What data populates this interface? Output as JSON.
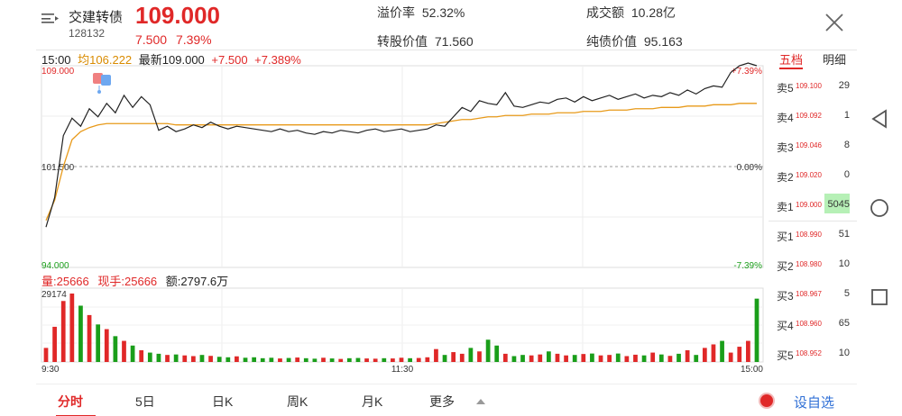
{
  "header": {
    "name": "交建转债",
    "code": "128132",
    "price": "109.000",
    "change_abs": "7.500",
    "change_pct": "7.39%",
    "premium_label": "溢价率",
    "premium_value": "52.32%",
    "turnover_label": "成交额",
    "turnover_value": "10.28亿",
    "conversion_label": "转股价值",
    "conversion_value": "71.560",
    "bond_label": "纯债价值",
    "bond_value": "95.163"
  },
  "info_row": {
    "time": "15:00",
    "avg_label": "均106.222",
    "latest_label": "最新109.000",
    "change_abs": "+7.500",
    "change_pct": "+7.389%"
  },
  "volume_row": {
    "volume": "量:25666",
    "current": "现手:25666",
    "amount": "额:2797.6万"
  },
  "chart_data": {
    "type": "line",
    "title": "",
    "ylim": [
      94.0,
      109.0
    ],
    "y_ticks": [
      "109.000",
      "101.500",
      "94.000"
    ],
    "pct_ticks": [
      "+7.39%",
      "0.00%",
      "-7.39%"
    ],
    "x_ticks": [
      "9:30",
      "11:30",
      "15:00"
    ],
    "prev_close": 101.5,
    "volume_max_label": "29174",
    "volume_max": 29174,
    "price": [
      97.0,
      99.2,
      103.8,
      105.1,
      104.5,
      105.8,
      105.2,
      106.2,
      105.5,
      106.8,
      105.9,
      106.7,
      106.1,
      104.2,
      104.5,
      104.1,
      104.3,
      104.6,
      104.4,
      104.8,
      104.5,
      104.3,
      104.5,
      104.4,
      104.3,
      104.2,
      104.1,
      104.3,
      104.1,
      104.2,
      104.0,
      103.9,
      104.1,
      104.0,
      104.2,
      104.1,
      104.0,
      104.2,
      104.3,
      104.1,
      104.2,
      104.3,
      104.1,
      104.2,
      104.3,
      104.6,
      104.5,
      105.2,
      105.9,
      105.6,
      106.4,
      106.2,
      106.1,
      107.0,
      106.0,
      105.9,
      106.1,
      106.3,
      106.2,
      106.5,
      106.6,
      106.3,
      106.7,
      106.4,
      106.6,
      106.8,
      106.5,
      106.7,
      106.9,
      106.6,
      106.8,
      106.7,
      107.0,
      106.8,
      107.2,
      106.9,
      107.3,
      107.5,
      107.4,
      108.5,
      109.0,
      109.2,
      109.0
    ],
    "average": [
      97.5,
      99.0,
      101.5,
      103.5,
      104.1,
      104.4,
      104.6,
      104.7,
      104.7,
      104.7,
      104.7,
      104.7,
      104.7,
      104.7,
      104.7,
      104.6,
      104.6,
      104.6,
      104.6,
      104.6,
      104.6,
      104.6,
      104.6,
      104.6,
      104.6,
      104.6,
      104.6,
      104.6,
      104.6,
      104.6,
      104.6,
      104.6,
      104.6,
      104.6,
      104.6,
      104.6,
      104.6,
      104.6,
      104.6,
      104.6,
      104.6,
      104.6,
      104.6,
      104.6,
      104.6,
      104.7,
      104.8,
      104.9,
      105.0,
      105.0,
      105.1,
      105.2,
      105.2,
      105.3,
      105.3,
      105.3,
      105.4,
      105.4,
      105.4,
      105.5,
      105.5,
      105.5,
      105.6,
      105.6,
      105.6,
      105.7,
      105.7,
      105.7,
      105.8,
      105.8,
      105.8,
      105.9,
      105.9,
      105.9,
      106.0,
      106.0,
      106.0,
      106.1,
      106.1,
      106.1,
      106.2,
      106.2,
      106.2
    ],
    "volume": [
      6000,
      15000,
      26000,
      29174,
      24000,
      20000,
      16000,
      14000,
      11000,
      9000,
      7000,
      5000,
      4000,
      3500,
      3000,
      3200,
      2800,
      2500,
      3000,
      2600,
      2200,
      2000,
      2400,
      1800,
      2000,
      1600,
      1800,
      1500,
      1700,
      1900,
      1600,
      1400,
      1800,
      1500,
      1300,
      1600,
      1700,
      1500,
      1400,
      1600,
      1500,
      1800,
      1600,
      1700,
      2000,
      5500,
      3000,
      4200,
      3500,
      6000,
      4500,
      9500,
      7000,
      3500,
      2500,
      3000,
      2800,
      3200,
      4500,
      3500,
      2800,
      3000,
      3400,
      3600,
      2800,
      3000,
      3600,
      2500,
      3100,
      2800,
      4000,
      3200,
      2600,
      3500,
      5000,
      3000,
      6000,
      7500,
      9000,
      4000,
      6500,
      9000,
      27000
    ]
  },
  "order_book": {
    "tab_active": "五档",
    "tab_other": "明细",
    "sell": [
      {
        "label": "卖5",
        "price": "109.100",
        "vol": "29"
      },
      {
        "label": "卖4",
        "price": "109.092",
        "vol": "1"
      },
      {
        "label": "卖3",
        "price": "109.046",
        "vol": "8"
      },
      {
        "label": "卖2",
        "price": "109.020",
        "vol": "0"
      },
      {
        "label": "卖1",
        "price": "109.000",
        "vol": "5045"
      }
    ],
    "buy": [
      {
        "label": "买1",
        "price": "108.990",
        "vol": "51"
      },
      {
        "label": "买2",
        "price": "108.980",
        "vol": "10"
      },
      {
        "label": "买3",
        "price": "108.967",
        "vol": "5"
      },
      {
        "label": "买4",
        "price": "108.960",
        "vol": "65"
      },
      {
        "label": "买5",
        "price": "108.952",
        "vol": "10"
      }
    ]
  },
  "tabs": [
    "分时",
    "5日",
    "日K",
    "周K",
    "月K",
    "更多"
  ],
  "self_select": "自选",
  "self_select_prefix": "设",
  "colors": {
    "up": "#e02828",
    "down": "#1a9e1a",
    "avg": "#e89a1a",
    "line": "#222222"
  }
}
